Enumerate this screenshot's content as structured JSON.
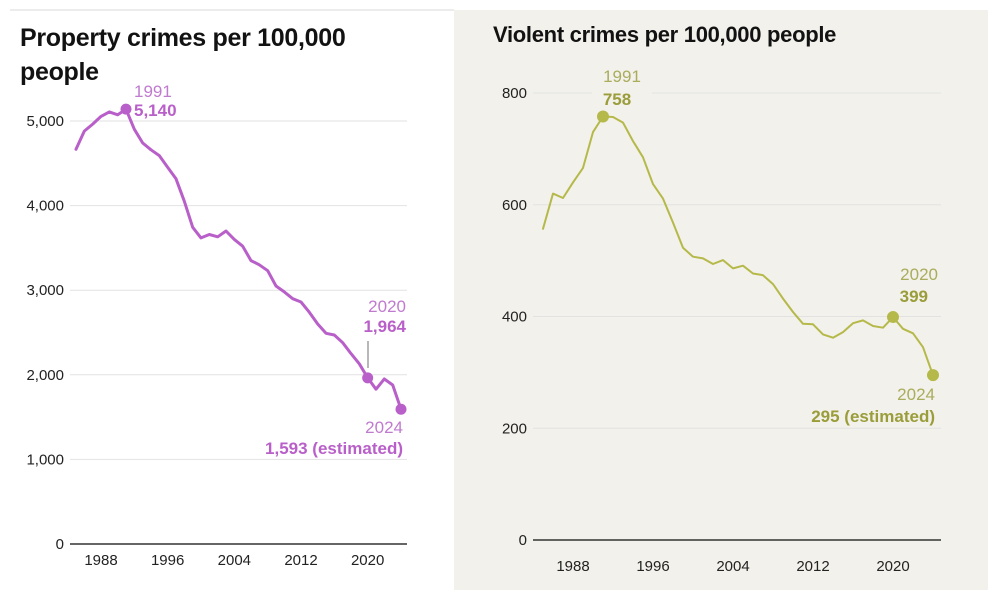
{
  "chart_data": [
    {
      "type": "line",
      "title": "Property crimes per 100,000 people",
      "xlabel": "",
      "ylabel": "",
      "color": "#b95fc9",
      "xlim": [
        1985,
        2024
      ],
      "ylim": [
        0,
        5000
      ],
      "yticks": [
        0,
        1000,
        2000,
        3000,
        4000,
        5000
      ],
      "ytick_labels": [
        "0",
        "1,000",
        "2,000",
        "3,000",
        "4,000",
        "5,000"
      ],
      "xticks": [
        1988,
        1996,
        2004,
        2012,
        2020
      ],
      "xtick_labels": [
        "1988",
        "1996",
        "2004",
        "2012",
        "2020"
      ],
      "grid": true,
      "x": [
        1985,
        1986,
        1987,
        1988,
        1989,
        1990,
        1991,
        1992,
        1993,
        1994,
        1995,
        1996,
        1997,
        1998,
        1999,
        2000,
        2001,
        2002,
        2003,
        2004,
        2005,
        2006,
        2007,
        2008,
        2009,
        2010,
        2011,
        2012,
        2013,
        2014,
        2015,
        2016,
        2017,
        2018,
        2019,
        2020,
        2021,
        2022,
        2023,
        2024
      ],
      "series": [
        {
          "name": "Property crimes",
          "values": [
            4666,
            4881,
            4963,
            5054,
            5107,
            5073,
            5140,
            4903,
            4740,
            4660,
            4591,
            4451,
            4317,
            4052,
            3744,
            3618,
            3658,
            3631,
            3700,
            3600,
            3520,
            3350,
            3300,
            3230,
            3050,
            2980,
            2900,
            2860,
            2740,
            2600,
            2490,
            2470,
            2380,
            2250,
            2130,
            1964,
            1830,
            1950,
            1880,
            1593
          ]
        }
      ],
      "annotations": [
        {
          "year": 1991,
          "year_label": "1991",
          "value": 5140,
          "value_label": "5,140"
        },
        {
          "year": 2020,
          "year_label": "2020",
          "value": 1964,
          "value_label": "1,964"
        },
        {
          "year": 2024,
          "year_label": "2024",
          "value": 1593,
          "value_label": "1,593 (estimated)"
        }
      ]
    },
    {
      "type": "line",
      "title": "Violent crimes per 100,000 people",
      "xlabel": "",
      "ylabel": "",
      "color": "#b5b94a",
      "xlim": [
        1985,
        2024
      ],
      "ylim": [
        0,
        800
      ],
      "yticks": [
        0,
        200,
        400,
        600,
        800
      ],
      "ytick_labels": [
        "0",
        "200",
        "400",
        "600",
        "800"
      ],
      "xticks": [
        1988,
        1996,
        2004,
        2012,
        2020
      ],
      "xtick_labels": [
        "1988",
        "1996",
        "2004",
        "2012",
        "2020"
      ],
      "grid": true,
      "x": [
        1985,
        1986,
        1987,
        1988,
        1989,
        1990,
        1991,
        1992,
        1993,
        1994,
        1995,
        1996,
        1997,
        1998,
        1999,
        2000,
        2001,
        2002,
        2003,
        2004,
        2005,
        2006,
        2007,
        2008,
        2009,
        2010,
        2011,
        2012,
        2013,
        2014,
        2015,
        2016,
        2017,
        2018,
        2019,
        2020,
        2021,
        2022,
        2023,
        2024
      ],
      "series": [
        {
          "name": "Violent crimes",
          "values": [
            557,
            620,
            612,
            640,
            666,
            730,
            758,
            757,
            747,
            714,
            685,
            637,
            611,
            568,
            523,
            507,
            504,
            494,
            501,
            486,
            491,
            477,
            474,
            458,
            432,
            408,
            387,
            386,
            368,
            362,
            372,
            388,
            393,
            383,
            380,
            399,
            378,
            370,
            345,
            295
          ]
        }
      ],
      "annotations": [
        {
          "year": 1991,
          "year_label": "1991",
          "value": 758,
          "value_label": "758"
        },
        {
          "year": 2020,
          "year_label": "2020",
          "value": 399,
          "value_label": "399"
        },
        {
          "year": 2024,
          "year_label": "2024",
          "value": 295,
          "value_label": "295 (estimated)"
        }
      ]
    }
  ],
  "colors": {
    "property_line": "#b95fc9",
    "property_label_light": "#c07bcf",
    "violent_line": "#b5b94a",
    "violent_label_light": "#a9ad5c",
    "violent_label_bold": "#9a9d3a",
    "panel_background": "#f3f1eb",
    "gridline": "#e2e2e2",
    "axis": "#333333"
  }
}
